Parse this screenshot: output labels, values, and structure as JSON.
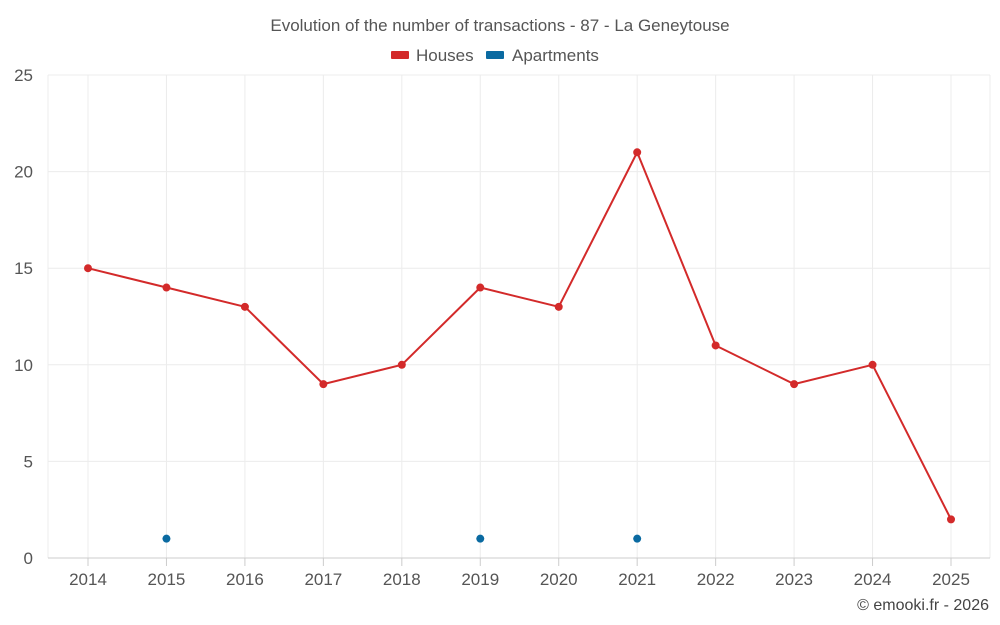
{
  "chart_data": {
    "type": "line",
    "title": "Evolution of the number of transactions - 87 - La Geneytouse",
    "categories": [
      "2014",
      "2015",
      "2016",
      "2017",
      "2018",
      "2019",
      "2020",
      "2021",
      "2022",
      "2023",
      "2024",
      "2025"
    ],
    "series": [
      {
        "name": "Houses",
        "color": "#d32a2a",
        "values": [
          15,
          14,
          13,
          9,
          10,
          14,
          13,
          21,
          11,
          9,
          10,
          2
        ]
      },
      {
        "name": "Apartments",
        "color": "#0a6aa1",
        "values": [
          null,
          1,
          null,
          null,
          null,
          1,
          null,
          1,
          null,
          null,
          null,
          null
        ]
      }
    ],
    "ylim": [
      0,
      25
    ],
    "yticks": [
      "0",
      "5",
      "10",
      "15",
      "20",
      "25"
    ],
    "xlabel": "",
    "ylabel": "",
    "grid": true,
    "legend_position": "top-center"
  },
  "credit": "© emooki.fr - 2026"
}
